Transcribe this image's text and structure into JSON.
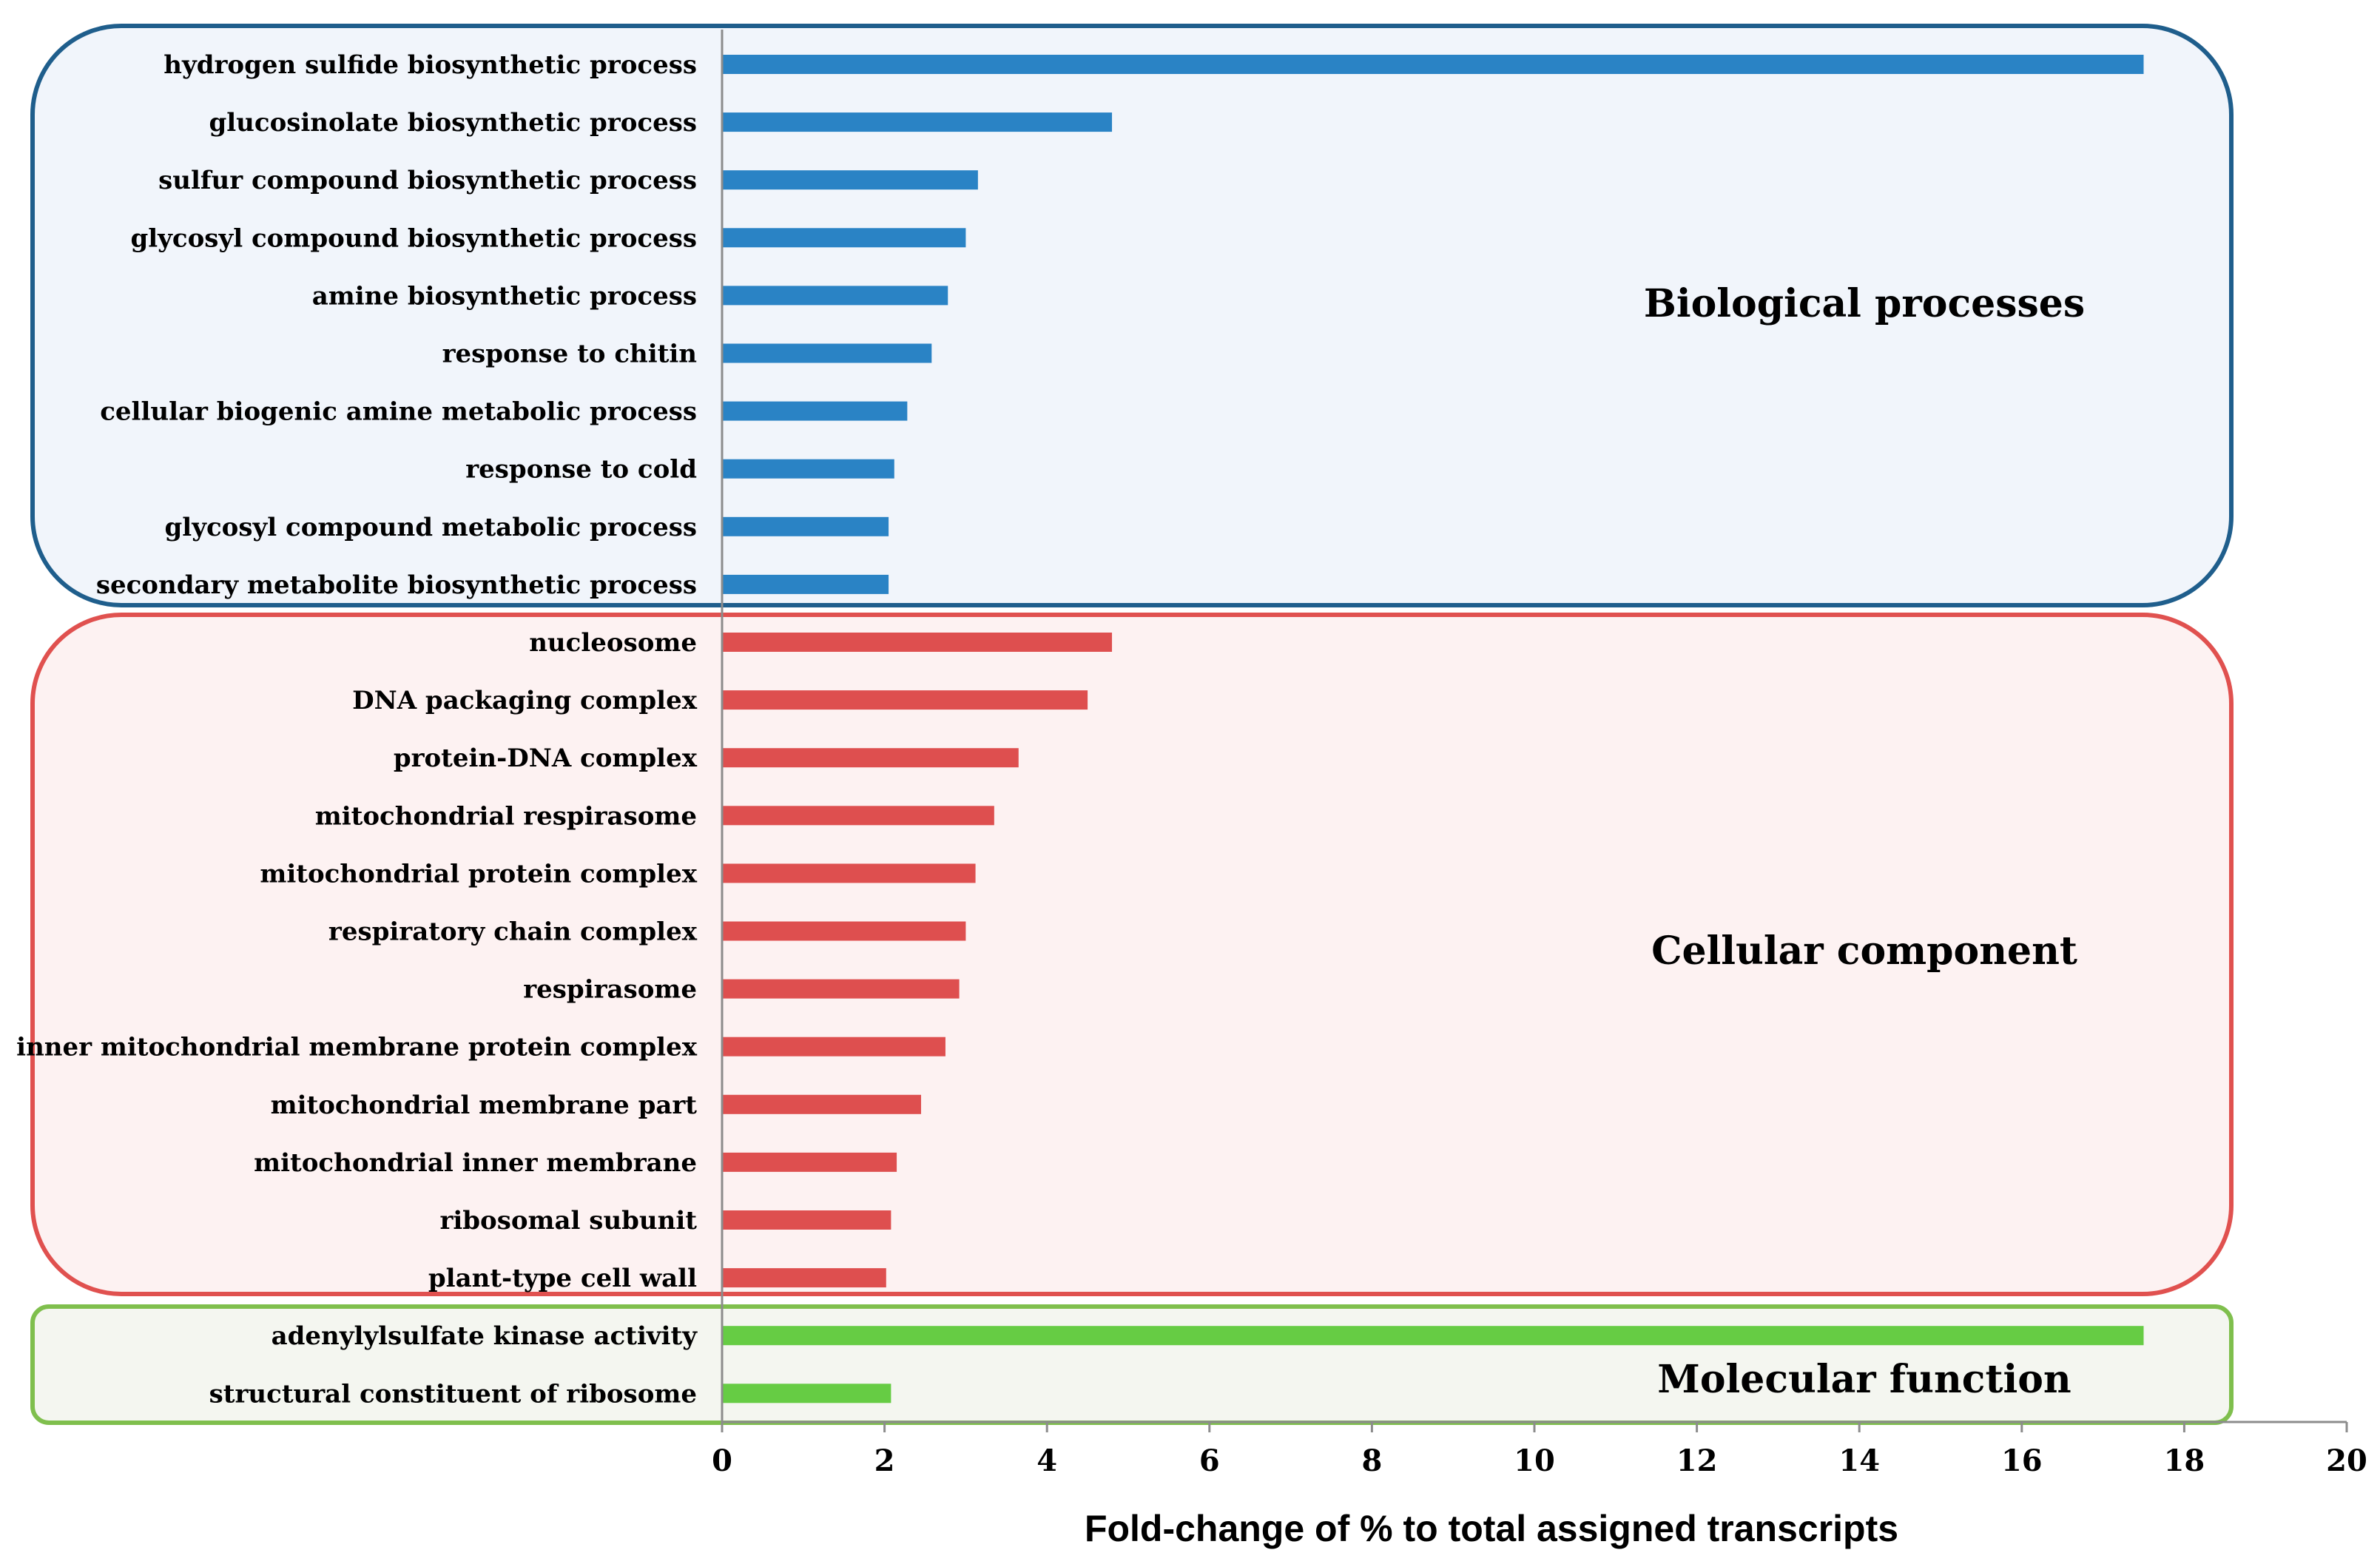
{
  "chart_data": {
    "type": "bar",
    "orientation": "horizontal",
    "xlabel": "Fold-change of  % to total assigned transcripts",
    "xlim": [
      0,
      20
    ],
    "xticks": [
      0,
      2,
      4,
      6,
      8,
      10,
      12,
      14,
      16,
      18,
      20
    ],
    "groups": [
      {
        "name": "Biological processes",
        "color": "#2a83c5",
        "box_stroke": "#1f5e8c",
        "box_fill": "#f1f5fb",
        "categories": [
          "hydrogen sulfide biosynthetic process",
          "glucosinolate biosynthetic process",
          "sulfur compound biosynthetic process",
          "glycosyl compound biosynthetic process",
          "amine biosynthetic process",
          "response to chitin",
          "cellular biogenic amine metabolic process",
          "response to cold",
          "glycosyl compound metabolic process",
          "secondary metabolite biosynthetic process"
        ],
        "values": [
          17.5,
          4.8,
          3.15,
          3.0,
          2.78,
          2.58,
          2.28,
          2.12,
          2.05,
          2.05
        ]
      },
      {
        "name": "Cellular component",
        "color": "#de4f4f",
        "box_stroke": "#e0514f",
        "box_fill": "#fdf2f2",
        "categories": [
          "nucleosome",
          "DNA packaging complex",
          "protein-DNA complex",
          "mitochondrial respirasome",
          "mitochondrial protein complex",
          "respiratory chain complex",
          "respirasome",
          "inner mitochondrial membrane protein complex",
          "mitochondrial membrane part",
          "mitochondrial inner membrane",
          "ribosomal subunit",
          "plant-type cell wall"
        ],
        "values": [
          4.8,
          4.5,
          3.65,
          3.35,
          3.12,
          3.0,
          2.92,
          2.75,
          2.45,
          2.15,
          2.08,
          2.02
        ]
      },
      {
        "name": "Molecular function",
        "color": "#66cc44",
        "box_stroke": "#7fbf4d",
        "box_fill": "#f4f6f0",
        "categories": [
          "adenylylsulfate kinase activity",
          "structural constituent of ribosome"
        ],
        "values": [
          17.5,
          2.08
        ]
      }
    ]
  }
}
